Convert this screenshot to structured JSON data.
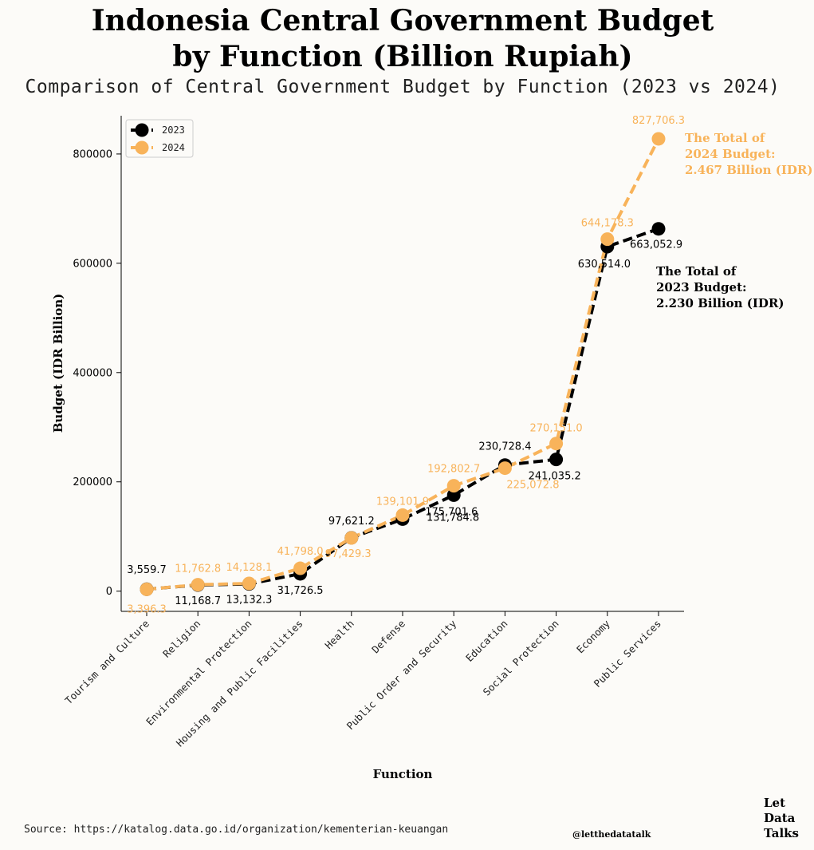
{
  "page": {
    "title_line1": "Indonesia Central Government Budget",
    "title_line2": "by Function (Billion Rupiah)",
    "subtitle": "Comparison of Central Government Budget by Function (2023 vs 2024)",
    "source": "Source: https://katalog.data.go.id/organization/kementerian-keuangan",
    "handle": "@letthedatatalk",
    "brand": [
      "Let",
      "Data",
      "Talks"
    ]
  },
  "chart_data": {
    "type": "line",
    "title": "",
    "xlabel": "Function",
    "ylabel": "Budget (IDR Billion)",
    "ylim": [
      -37000,
      870000
    ],
    "yticks": [
      0,
      200000,
      400000,
      600000,
      800000
    ],
    "ytick_labels": [
      "0",
      "200000",
      "400000",
      "600000",
      "800000"
    ],
    "grid": false,
    "legend_position": "upper-left",
    "categories": [
      "Tourism and Culture",
      "Religion",
      "Environmental Protection",
      "Housing and Public Facilities",
      "Health",
      "Defense",
      "Public Order and Security",
      "Education",
      "Social Protection",
      "Economy",
      "Public Services"
    ],
    "series": [
      {
        "name": "2023",
        "color": "#000000",
        "values": [
          3559.7,
          11168.7,
          13132.3,
          31726.5,
          97621.2,
          131784.8,
          175701.6,
          230728.4,
          241035.2,
          630514.0,
          663052.9
        ],
        "labels": [
          "3,559.7",
          "11,168.7",
          "13,132.3",
          "31,726.5",
          "97,621.2",
          "131,784.8",
          "175,701.6",
          "230,728.4",
          "241,035.2",
          "630,514.0",
          "663,052.9"
        ]
      },
      {
        "name": "2024",
        "color": "#f8b35a",
        "values": [
          3396.3,
          11762.8,
          14128.1,
          41798.0,
          97429.3,
          139101.9,
          192802.7,
          225072.8,
          270151.0,
          644178.3,
          827706.3
        ],
        "labels": [
          "3,396.3",
          "11,762.8",
          "14,128.1",
          "41,798.0",
          "97,429.3",
          "139,101.9",
          "192,802.7",
          "225,072.8",
          "270,151.0",
          "644,178.3",
          "827,706.3"
        ]
      }
    ],
    "annotations": [
      {
        "lines": [
          "The Total of",
          "2024 Budget:",
          "2.467 Billion (IDR)"
        ],
        "color": "#f8b35a"
      },
      {
        "lines": [
          "The Total of",
          "2023 Budget:",
          "2.230 Billion (IDR)"
        ],
        "color": "#000000"
      }
    ]
  }
}
